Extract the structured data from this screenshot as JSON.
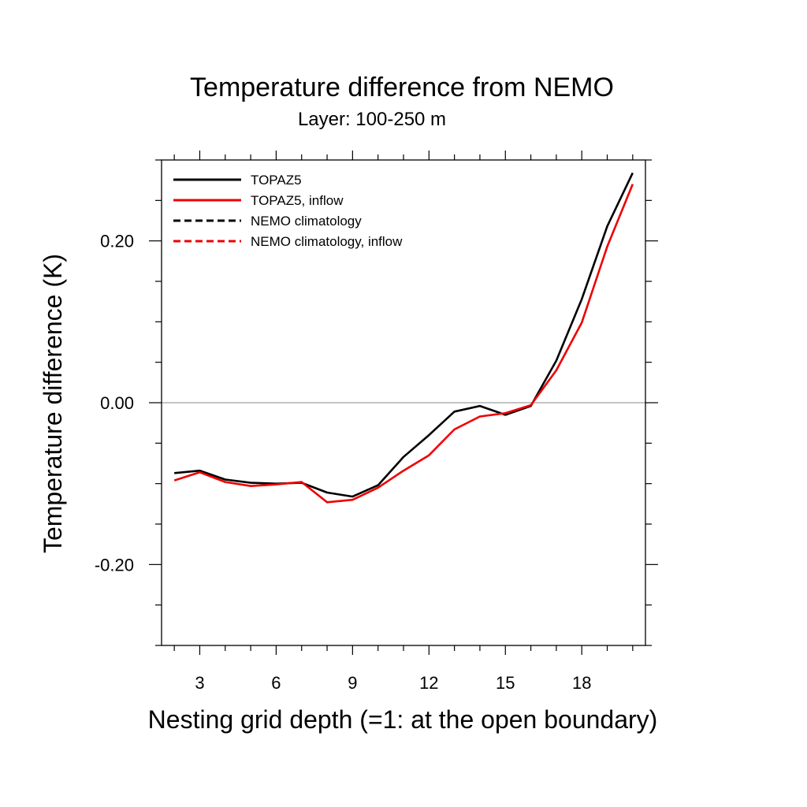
{
  "chart_data": {
    "type": "line",
    "title": "Temperature difference from NEMO",
    "subtitle": "Layer: 100-250 m",
    "xlabel": "Nesting grid depth (=1: at the open boundary)",
    "ylabel": "Temperature difference (K)",
    "xlim": [
      1.5,
      20.5
    ],
    "ylim": [
      -0.3,
      0.3
    ],
    "x_ticks": [
      3,
      6,
      9,
      12,
      15,
      18
    ],
    "x_tick_labels": [
      "3",
      "6",
      "9",
      "12",
      "15",
      "18"
    ],
    "y_ticks": [
      -0.2,
      0.0,
      0.2
    ],
    "y_tick_labels": [
      "-0.20",
      "0.00",
      "0.20"
    ],
    "reference_line_y": 0.0,
    "legend_position": "top-left",
    "series": [
      {
        "name": "TOPAZ5",
        "color": "#000000",
        "dash": "solid",
        "x": [
          2,
          3,
          4,
          5,
          6,
          7,
          8,
          9,
          10,
          11,
          12,
          13,
          14,
          15,
          16,
          17,
          18,
          19,
          20
        ],
        "values": [
          -0.087,
          -0.084,
          -0.095,
          -0.099,
          -0.1,
          -0.099,
          -0.111,
          -0.116,
          -0.102,
          -0.067,
          -0.04,
          -0.011,
          -0.004,
          -0.015,
          -0.004,
          0.052,
          0.128,
          0.218,
          0.284
        ]
      },
      {
        "name": "TOPAZ5, inflow",
        "color": "#ee0000",
        "dash": "solid",
        "x": [
          2,
          3,
          4,
          5,
          6,
          7,
          8,
          9,
          10,
          11,
          12,
          13,
          14,
          15,
          16,
          17,
          18,
          19,
          20
        ],
        "values": [
          -0.096,
          -0.086,
          -0.098,
          -0.103,
          -0.101,
          -0.098,
          -0.123,
          -0.12,
          -0.105,
          -0.084,
          -0.065,
          -0.033,
          -0.017,
          -0.013,
          -0.003,
          0.04,
          0.099,
          0.193,
          0.27
        ]
      },
      {
        "name": "NEMO climatology",
        "color": "#000000",
        "dash": "dashed",
        "x": [],
        "values": []
      },
      {
        "name": "NEMO climatology, inflow",
        "color": "#ee0000",
        "dash": "dashed",
        "x": [],
        "values": []
      }
    ]
  }
}
